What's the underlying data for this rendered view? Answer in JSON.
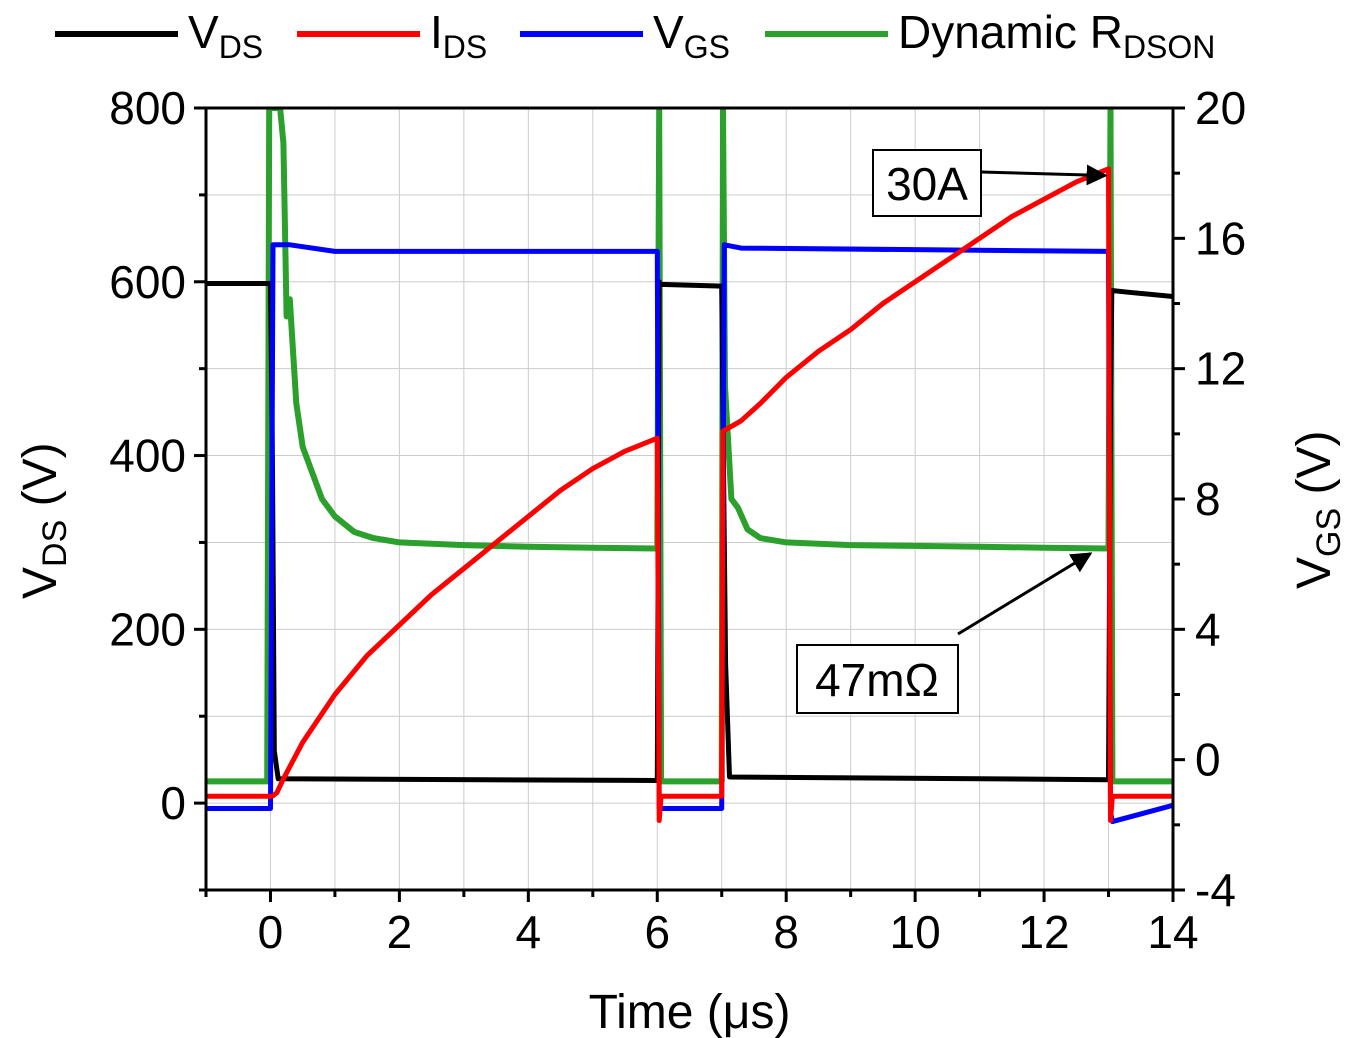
{
  "chart_data": {
    "type": "line",
    "xlabel": "Time (μs)",
    "ylabel_left": {
      "main": "V",
      "sub": "DS",
      "unit": " (V)"
    },
    "ylabel_right": {
      "main": "V",
      "sub": "GS",
      "unit": " (V)"
    },
    "xlim": [
      -1,
      14
    ],
    "ylim_left": [
      -100,
      800
    ],
    "ylim_right": [
      -4,
      20
    ],
    "x_ticks": [
      "0",
      "2",
      "4",
      "6",
      "8",
      "10",
      "12",
      "14"
    ],
    "x_tick_values": [
      0,
      2,
      4,
      6,
      8,
      10,
      12,
      14
    ],
    "y_left_ticks": [
      "0",
      "200",
      "400",
      "600",
      "800"
    ],
    "y_left_tick_values": [
      0,
      200,
      400,
      600,
      800
    ],
    "y_right_ticks": [
      "-4",
      "0",
      "4",
      "8",
      "12",
      "16",
      "20"
    ],
    "y_right_tick_values": [
      -4,
      0,
      4,
      8,
      12,
      16,
      20
    ],
    "grid": true,
    "legend_position": "top",
    "legend": [
      {
        "main": "V",
        "sub": "DS",
        "color": "#000000"
      },
      {
        "main": "I",
        "sub": "DS",
        "color": "#ff0000"
      },
      {
        "main": "V",
        "sub": "GS",
        "color": "#0000ff"
      },
      {
        "main": "Dynamic R",
        "sub": "DSON",
        "color": "#2ca02c"
      }
    ],
    "annotations": [
      {
        "text": "30A",
        "x": 13,
        "y_left": 720
      },
      {
        "text": "47mΩ",
        "x": 13,
        "y_left": 293
      }
    ],
    "series": [
      {
        "name": "VDS",
        "axis": "left",
        "color": "#000000",
        "points": [
          [
            -1,
            598
          ],
          [
            0,
            598
          ],
          [
            0.03,
            400
          ],
          [
            0.06,
            60
          ],
          [
            0.12,
            28
          ],
          [
            6,
            26
          ],
          [
            6.03,
            600
          ],
          [
            6.05,
            597
          ],
          [
            7,
            595
          ],
          [
            7.02,
            440
          ],
          [
            7.06,
            160
          ],
          [
            7.12,
            30
          ],
          [
            13,
            27
          ],
          [
            13.03,
            470
          ],
          [
            13.05,
            590
          ],
          [
            13.3,
            588
          ],
          [
            14,
            583
          ]
        ]
      },
      {
        "name": "IDS",
        "axis": "left",
        "color": "#ff0000",
        "points": [
          [
            -1,
            8
          ],
          [
            0.03,
            8
          ],
          [
            0.1,
            12
          ],
          [
            0.2,
            28
          ],
          [
            0.5,
            70
          ],
          [
            1,
            125
          ],
          [
            1.5,
            170
          ],
          [
            2,
            205
          ],
          [
            2.5,
            240
          ],
          [
            3,
            270
          ],
          [
            3.5,
            300
          ],
          [
            4,
            330
          ],
          [
            4.5,
            360
          ],
          [
            5,
            385
          ],
          [
            5.5,
            405
          ],
          [
            6,
            420
          ],
          [
            6.03,
            -20
          ],
          [
            6.06,
            8
          ],
          [
            7,
            8
          ],
          [
            7.02,
            428
          ],
          [
            7.3,
            440
          ],
          [
            7.6,
            460
          ],
          [
            8,
            490
          ],
          [
            8.5,
            520
          ],
          [
            9,
            545
          ],
          [
            9.5,
            575
          ],
          [
            10,
            600
          ],
          [
            10.5,
            625
          ],
          [
            11,
            650
          ],
          [
            11.5,
            675
          ],
          [
            12,
            695
          ],
          [
            12.5,
            715
          ],
          [
            13,
            730
          ],
          [
            13.03,
            -20
          ],
          [
            13.06,
            8
          ],
          [
            14,
            8
          ]
        ]
      },
      {
        "name": "VGS",
        "axis": "right",
        "color": "#0000ff",
        "points": [
          [
            -1,
            -1.5
          ],
          [
            0,
            -1.5
          ],
          [
            0.04,
            15.8
          ],
          [
            0.3,
            15.8
          ],
          [
            1,
            15.6
          ],
          [
            6,
            15.6
          ],
          [
            6.03,
            -1.5
          ],
          [
            7,
            -1.5
          ],
          [
            7.04,
            15.8
          ],
          [
            7.3,
            15.7
          ],
          [
            13,
            15.6
          ],
          [
            13.03,
            -1.6
          ],
          [
            13.06,
            -1.9
          ],
          [
            14,
            -1.4
          ]
        ]
      },
      {
        "name": "Dynamic RDSON",
        "axis": "left",
        "color": "#2ca02c",
        "points": [
          [
            -1,
            25
          ],
          [
            -0.05,
            25
          ],
          [
            -0.02,
            800
          ],
          [
            0.15,
            800
          ],
          [
            0.2,
            760
          ],
          [
            0.25,
            560
          ],
          [
            0.3,
            580
          ],
          [
            0.4,
            460
          ],
          [
            0.5,
            410
          ],
          [
            0.6,
            390
          ],
          [
            0.8,
            350
          ],
          [
            1,
            330
          ],
          [
            1.3,
            312
          ],
          [
            1.6,
            305
          ],
          [
            2,
            300
          ],
          [
            3,
            297
          ],
          [
            4,
            295
          ],
          [
            5,
            294
          ],
          [
            6,
            293
          ],
          [
            6.03,
            800
          ],
          [
            6.06,
            25
          ],
          [
            7,
            25
          ],
          [
            7.02,
            800
          ],
          [
            7.05,
            480
          ],
          [
            7.15,
            350
          ],
          [
            7.25,
            340
          ],
          [
            7.4,
            315
          ],
          [
            7.6,
            305
          ],
          [
            8,
            300
          ],
          [
            9,
            297
          ],
          [
            10,
            296
          ],
          [
            11,
            295
          ],
          [
            12,
            294
          ],
          [
            13,
            293
          ],
          [
            13.03,
            800
          ],
          [
            13.06,
            25
          ],
          [
            14,
            25
          ]
        ]
      }
    ]
  }
}
